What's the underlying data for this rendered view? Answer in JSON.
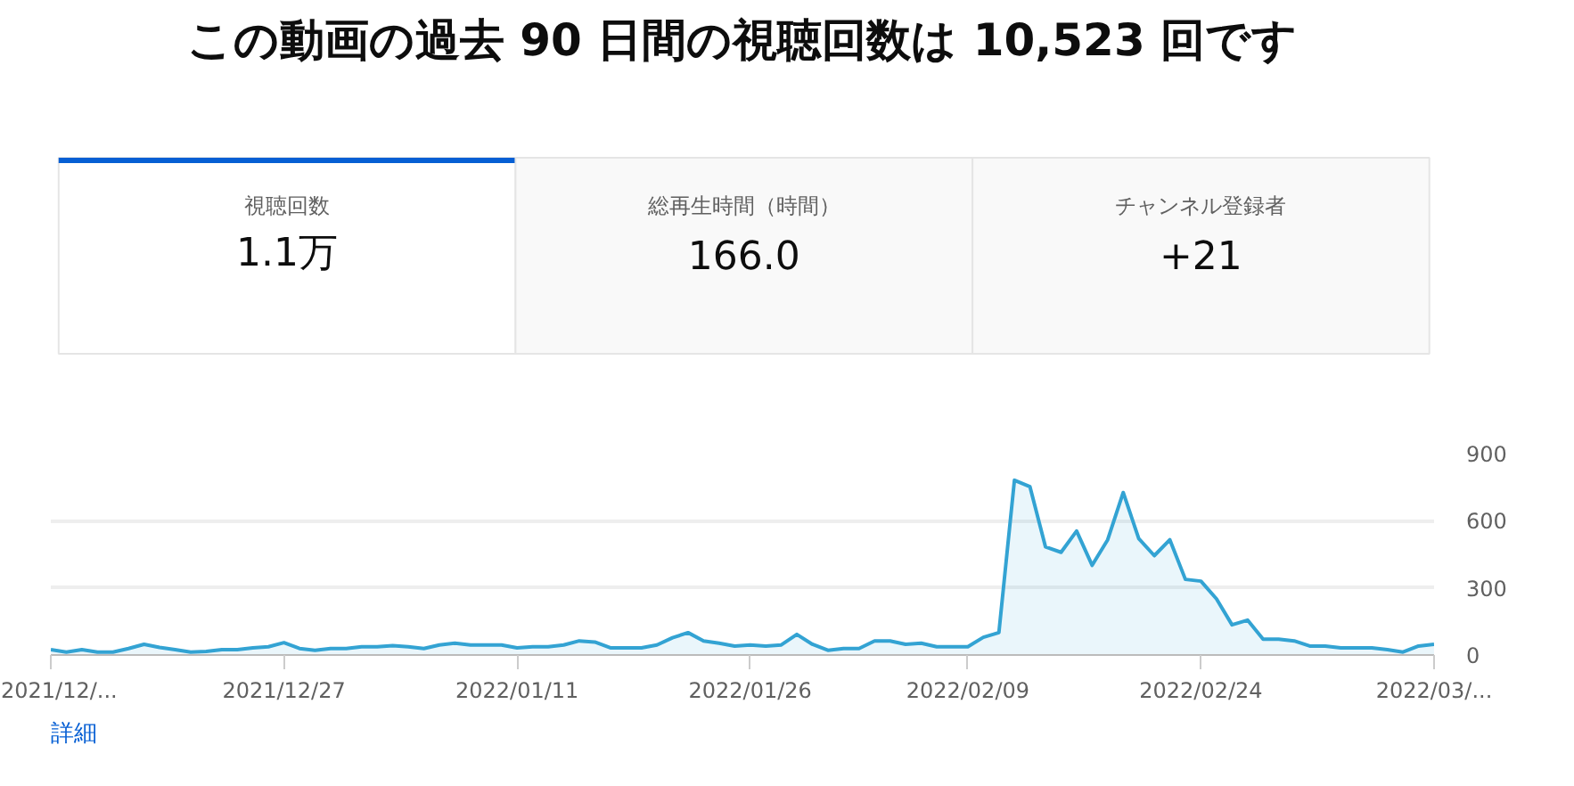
{
  "chart_data": [
    {
      "type": "other",
      "title": "この動画の過去 90 日間の視聴回数は 10,523 回です",
      "annotations": [
        "視聴回数",
        "1.1万",
        "総再生時間（時間）",
        "166.0",
        "チャンネル登録者",
        "+21"
      ]
    },
    {
      "type": "area",
      "color": "#33a3d3",
      "grid": "y",
      "annotations": [
        "詳細"
      ],
      "x": [
        "2021-12-12",
        "2021-12-13",
        "2021-12-14",
        "2021-12-15",
        "2021-12-16",
        "2021-12-17",
        "2021-12-18",
        "2021-12-19",
        "2021-12-20",
        "2021-12-21",
        "2021-12-22",
        "2021-12-23",
        "2021-12-24",
        "2021-12-25",
        "2021-12-26",
        "2021-12-27",
        "2021-12-28",
        "2021-12-29",
        "2021-12-30",
        "2021-12-31",
        "2022-01-01",
        "2022-01-02",
        "2022-01-03",
        "2022-01-04",
        "2022-01-05",
        "2022-01-06",
        "2022-01-07",
        "2022-01-08",
        "2022-01-09",
        "2022-01-10",
        "2022-01-11",
        "2022-01-12",
        "2022-01-13",
        "2022-01-14",
        "2022-01-15",
        "2022-01-16",
        "2022-01-17",
        "2022-01-18",
        "2022-01-19",
        "2022-01-20",
        "2022-01-21",
        "2022-01-22",
        "2022-01-23",
        "2022-01-24",
        "2022-01-25",
        "2022-01-26",
        "2022-01-27",
        "2022-01-28",
        "2022-01-29",
        "2022-01-30",
        "2022-01-31",
        "2022-02-01",
        "2022-02-02",
        "2022-02-03",
        "2022-02-04",
        "2022-02-05",
        "2022-02-06",
        "2022-02-07",
        "2022-02-08",
        "2022-02-09",
        "2022-02-10",
        "2022-02-11",
        "2022-02-12",
        "2022-02-13",
        "2022-02-14",
        "2022-02-15",
        "2022-02-16",
        "2022-02-17",
        "2022-02-18",
        "2022-02-19",
        "2022-02-20",
        "2022-02-21",
        "2022-02-22",
        "2022-02-23",
        "2022-02-24",
        "2022-02-25",
        "2022-02-26",
        "2022-02-27",
        "2022-02-28",
        "2022-03-01",
        "2022-03-02",
        "2022-03-03",
        "2022-03-04",
        "2022-03-05",
        "2022-03-06",
        "2022-03-07",
        "2022-03-08",
        "2022-03-09",
        "2022-03-10",
        "2022-03-11"
      ],
      "values": [
        24,
        13,
        24,
        13,
        13,
        29,
        48,
        34,
        24,
        13,
        16,
        24,
        24,
        32,
        37,
        55,
        29,
        21,
        29,
        29,
        37,
        37,
        42,
        37,
        29,
        45,
        53,
        45,
        45,
        45,
        32,
        37,
        37,
        45,
        63,
        58,
        32,
        32,
        32,
        45,
        77,
        100,
        63,
        53,
        40,
        45,
        40,
        45,
        92,
        48,
        21,
        29,
        29,
        63,
        63,
        48,
        53,
        37,
        37,
        37,
        79,
        100,
        781,
        752,
        483,
        459,
        554,
        401,
        515,
        726,
        520,
        444,
        515,
        338,
        330,
        251,
        135,
        156,
        71,
        71,
        63,
        40,
        40,
        32,
        32,
        32,
        24,
        13,
        40,
        48
      ],
      "xlim": [
        "2021-12-12",
        "2022-03-11"
      ],
      "xticks": [
        {
          "value": "2021-12-12",
          "label": "2021/12/..."
        },
        {
          "value": "2021-12-27",
          "label": "2021/12/27"
        },
        {
          "value": "2022-01-11",
          "label": "2022/01/11"
        },
        {
          "value": "2022-01-26",
          "label": "2022/01/26"
        },
        {
          "value": "2022-02-09",
          "label": "2022/02/09"
        },
        {
          "value": "2022-02-24",
          "label": "2022/02/24"
        },
        {
          "value": "2022-03-11",
          "label": "2022/03/..."
        }
      ],
      "ylim": [
        0,
        900
      ],
      "yticks": [
        0,
        300,
        600,
        900
      ]
    }
  ]
}
